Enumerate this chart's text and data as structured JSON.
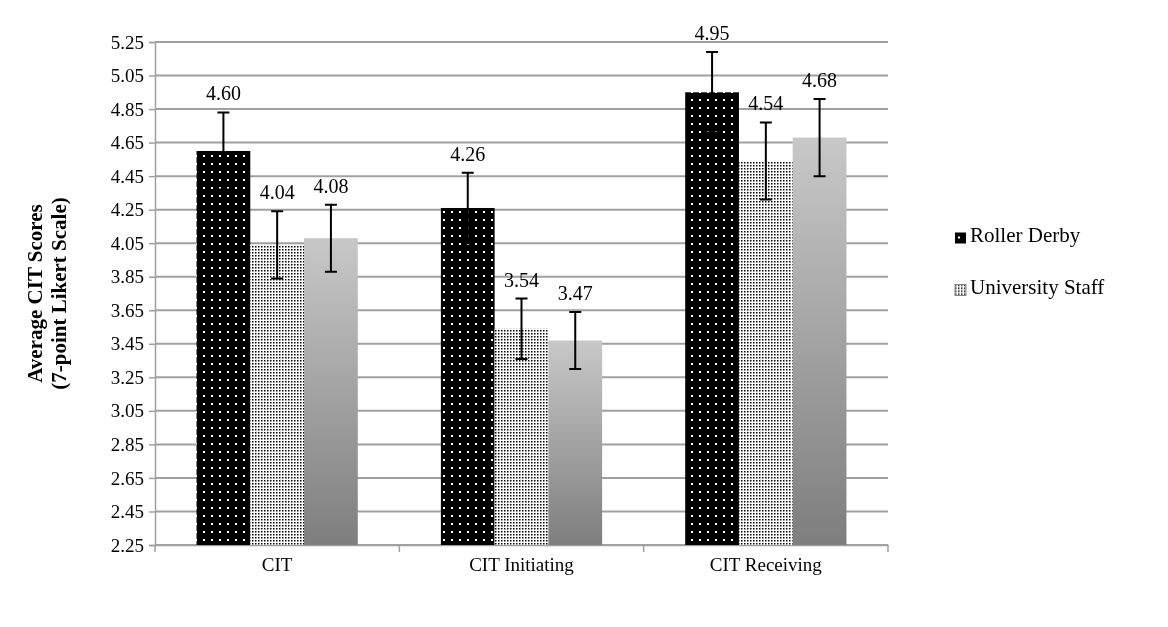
{
  "chart_data": {
    "type": "bar",
    "ylabel": "Average CIT Scores\n(7-point Likert Scale)",
    "categories": [
      "CIT",
      "CIT Initiating",
      "CIT Receiving"
    ],
    "series": [
      {
        "name": "Roller Derby",
        "color": "#000000",
        "values": [
          4.6,
          4.26,
          4.95
        ],
        "value_labels": [
          "4.60",
          "4.26",
          "4.95"
        ],
        "errors": [
          0.23,
          0.21,
          0.24
        ]
      },
      {
        "name": "University Staff",
        "color": "#ffffff",
        "values": [
          4.04,
          3.54,
          4.54
        ],
        "value_labels": [
          "4.04",
          "3.54",
          "4.54"
        ],
        "errors": [
          0.2,
          0.18,
          0.23
        ]
      },
      {
        "color": "#c8c8c8",
        "values": [
          4.08,
          3.47,
          4.68
        ],
        "value_labels": [
          "4.08",
          "3.47",
          "4.68"
        ],
        "errors": [
          0.2,
          0.17,
          0.23
        ]
      }
    ],
    "ylim": [
      2.25,
      5.25
    ],
    "yticks": [
      {
        "value": 2.25,
        "label": "2.25"
      },
      {
        "value": 2.45,
        "label": "2.45"
      },
      {
        "value": 2.65,
        "label": "2.65"
      },
      {
        "value": 2.85,
        "label": "2.85"
      },
      {
        "value": 3.05,
        "label": "3.05"
      },
      {
        "value": 3.25,
        "label": "3.25"
      },
      {
        "value": 3.45,
        "label": "3.45"
      },
      {
        "value": 3.65,
        "label": "3.65"
      },
      {
        "value": 3.85,
        "label": "3.85"
      },
      {
        "value": 4.05,
        "label": "4.05"
      },
      {
        "value": 4.25,
        "label": "4.25"
      },
      {
        "value": 4.45,
        "label": "4.45"
      },
      {
        "value": 4.65,
        "label": "4.65"
      },
      {
        "value": 4.85,
        "label": "4.85"
      },
      {
        "value": 5.05,
        "label": "5.05"
      },
      {
        "value": 5.25,
        "label": "5.25"
      }
    ],
    "grid": "y",
    "legend": "right"
  }
}
